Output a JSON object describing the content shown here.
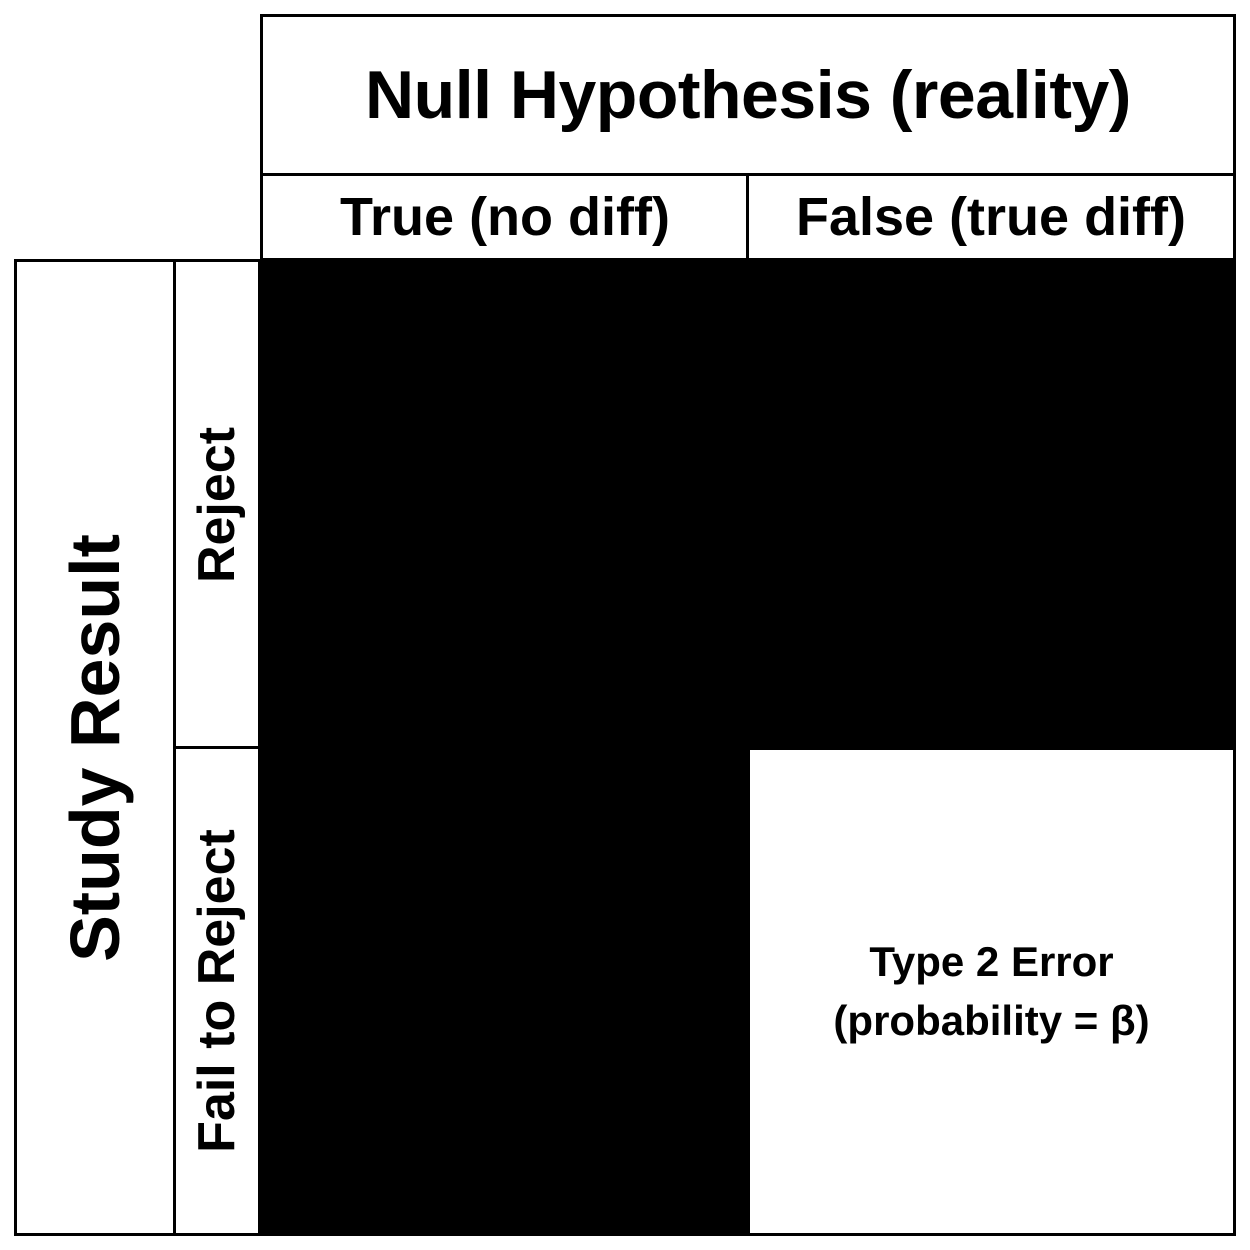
{
  "columns_header": {
    "title": "Null Hypothesis (reality)",
    "options": [
      "True (no diff)",
      "False (true diff)"
    ]
  },
  "rows_header": {
    "title": "Study Result",
    "options": [
      "Reject",
      "Fail to Reject"
    ]
  },
  "cells": {
    "fail_to_reject_false": {
      "line1": "Type 2 Error",
      "line2": "(probability = β)"
    }
  },
  "colors": {
    "line": "#000000",
    "redacted_fill": "#000000",
    "background": "#ffffff"
  }
}
